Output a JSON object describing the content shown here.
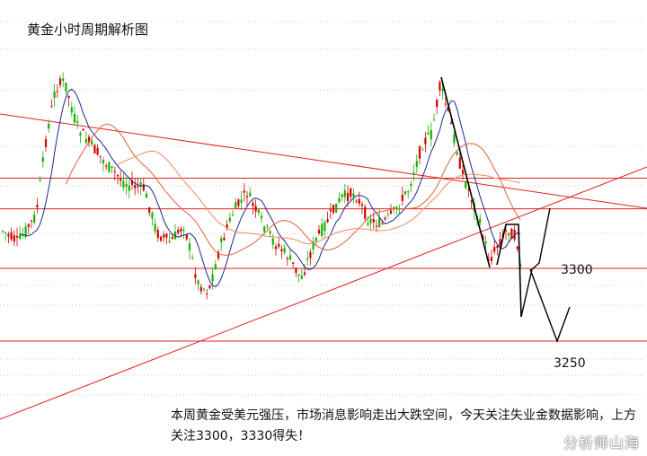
{
  "title": "黄金小时周期解析图",
  "comment": "本周黄金受美元强压，市场消息影响走出大跌空间，今天关注失业金数据影响，上方关注3300，3330得失！",
  "watermark": "分析师山海",
  "chart_data": {
    "type": "candlestick",
    "title": "黄金小时周期解析图",
    "price_labels": [
      {
        "text": "3300",
        "value": 3300
      },
      {
        "text": "3250",
        "value": 3250
      }
    ],
    "levels": [
      3362,
      3341,
      3300,
      3250
    ],
    "colors": {
      "up": "#d40000",
      "down": "#18b000",
      "level_line": "#e02020",
      "ma_fast": "#1a2a8c",
      "ma_slow": "#e0603a",
      "projection": "#000000"
    }
  }
}
